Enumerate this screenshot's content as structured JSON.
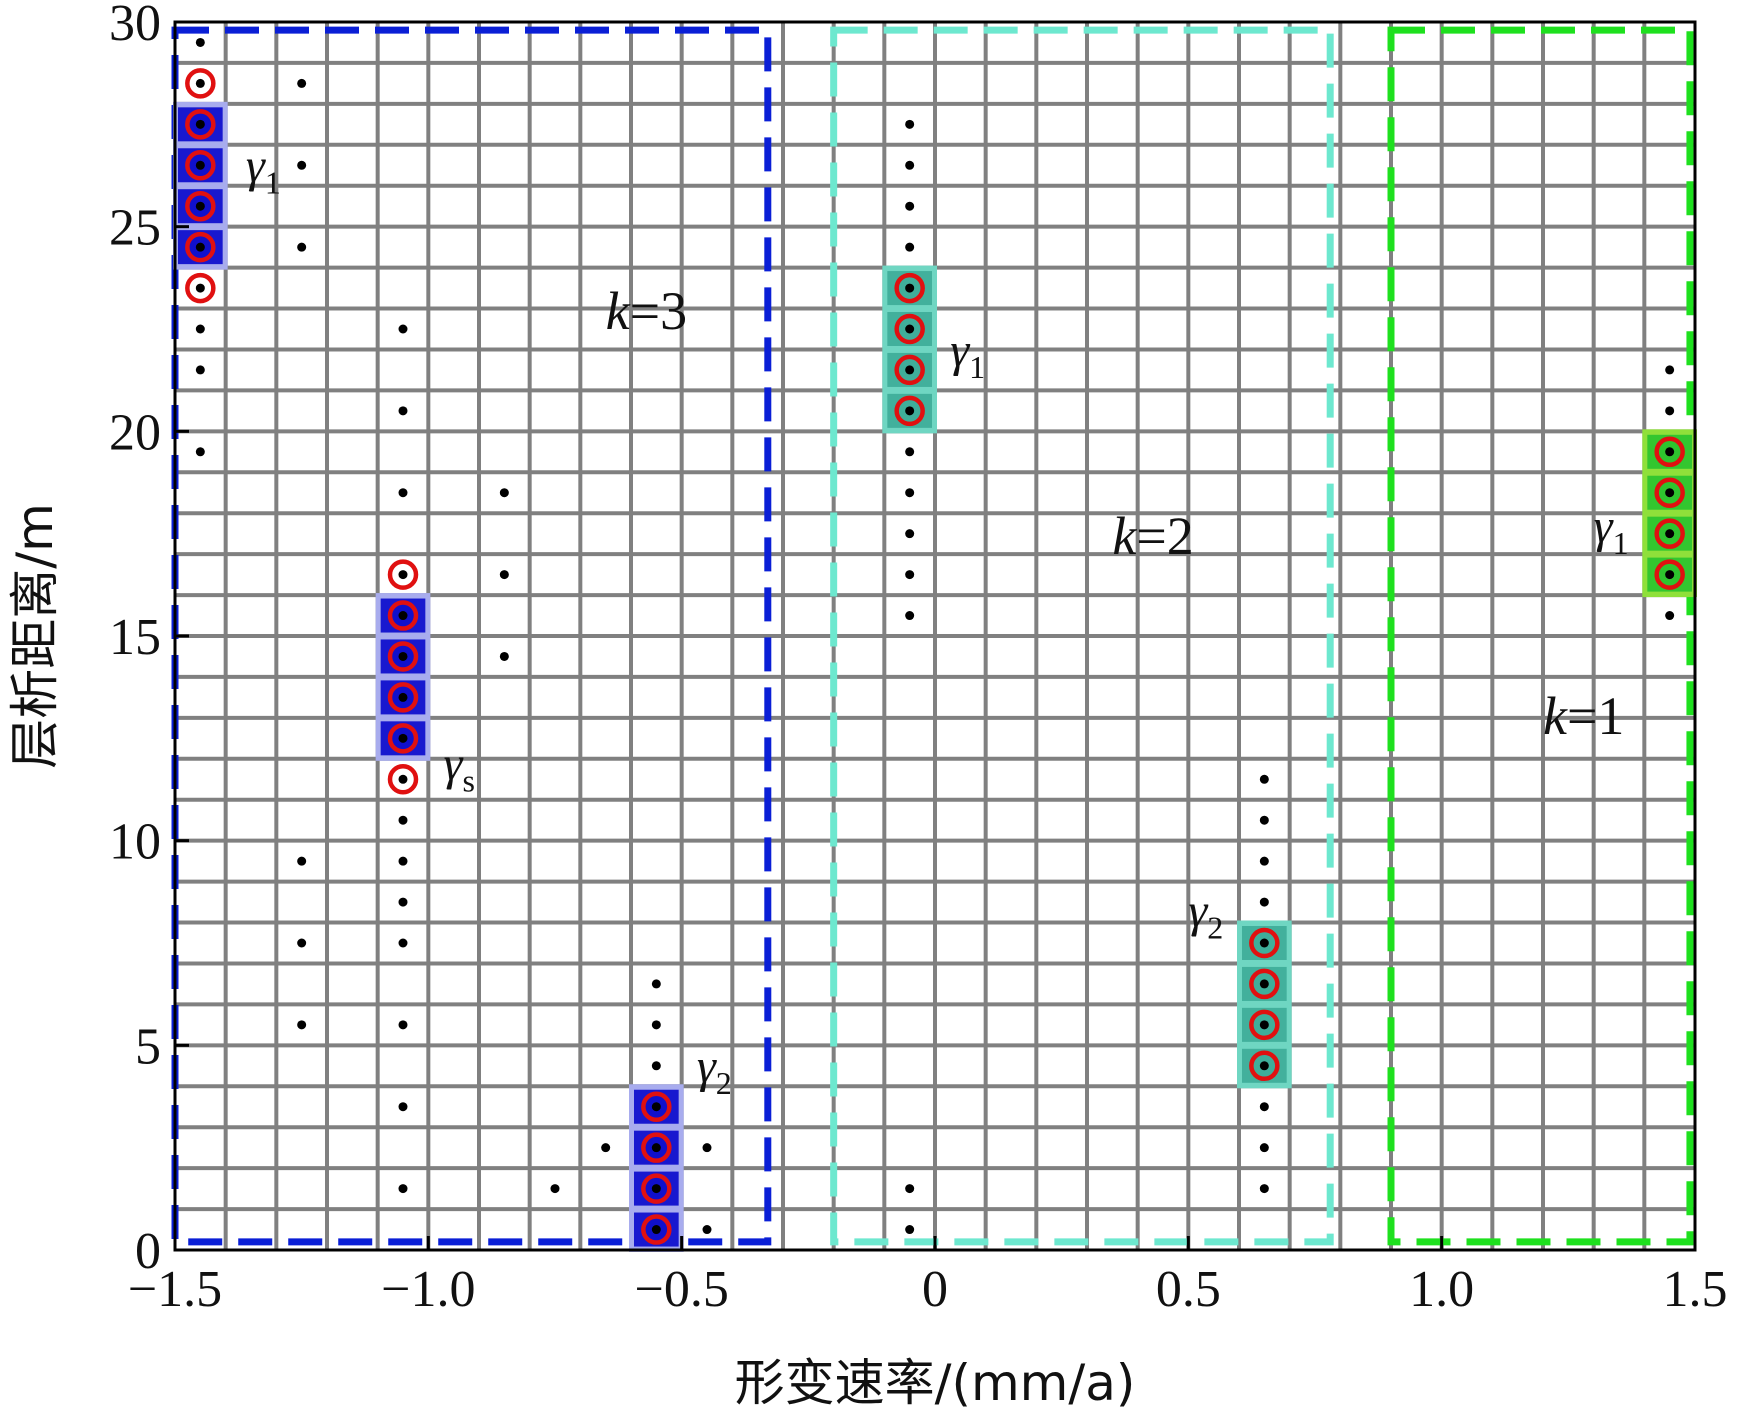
{
  "chart_data": {
    "type": "scatter",
    "title": "",
    "xlabel": "形变速率/(mm/a)",
    "ylabel": "层析距离/m",
    "xlim": [
      -1.5,
      1.5
    ],
    "ylim": [
      0,
      30
    ],
    "x_step": 0.1,
    "y_step": 1,
    "x_ticks": [
      -1.5,
      -1.0,
      -0.5,
      0,
      0.5,
      1.0,
      1.5
    ],
    "x_tick_labels": [
      "−1.5",
      "−1.0",
      "−0.5",
      "0",
      "0.5",
      "1.0",
      "1.5"
    ],
    "y_ticks": [
      0,
      5,
      10,
      15,
      20,
      25,
      30
    ],
    "y_tick_labels": [
      "0",
      "5",
      "10",
      "15",
      "20",
      "25",
      "30"
    ],
    "grid": true,
    "grid_color": "#808080",
    "regions": [
      {
        "name": "k=3",
        "k_var": "k",
        "k_value": "=3",
        "x_range": [
          -1.5,
          -0.33
        ],
        "y_range": [
          0.2,
          29.8
        ],
        "color": "#0a1fd6",
        "label_at": [
          -0.65,
          22.5
        ]
      },
      {
        "name": "k=2",
        "k_var": "k",
        "k_value": "=2",
        "x_range": [
          -0.2,
          0.78
        ],
        "y_range": [
          0.2,
          29.8
        ],
        "color": "#6de8cf",
        "label_at": [
          0.35,
          17
        ]
      },
      {
        "name": "k=1",
        "k_var": "k",
        "k_value": "=1",
        "x_range": [
          0.9,
          1.49
        ],
        "y_range": [
          0.2,
          29.8
        ],
        "color": "#1ee01e",
        "label_at": [
          1.2,
          12.6
        ]
      }
    ],
    "points": [
      {
        "x": -1.45,
        "y": [
          29.5,
          22.5,
          21.5,
          19.5
        ]
      },
      {
        "x": -1.25,
        "y": [
          28.5,
          26.5,
          24.5,
          9.5,
          7.5,
          5.5
        ]
      },
      {
        "x": -1.05,
        "y": [
          22.5,
          20.5,
          18.5,
          10.5,
          9.5,
          8.5,
          7.5,
          5.5,
          3.5,
          1.5
        ]
      },
      {
        "x": -0.85,
        "y": [
          18.5,
          16.5,
          14.5
        ]
      },
      {
        "x": -0.75,
        "y": [
          1.5
        ]
      },
      {
        "x": -0.65,
        "y": [
          2.5
        ]
      },
      {
        "x": -0.55,
        "y": [
          6.5,
          5.5,
          4.5
        ]
      },
      {
        "x": -0.45,
        "y": [
          2.5,
          0.5
        ]
      },
      {
        "x": -0.05,
        "y": [
          27.5,
          26.5,
          25.5,
          24.5,
          19.5,
          18.5,
          17.5,
          16.5,
          15.5,
          1.5,
          0.5
        ]
      },
      {
        "x": 0.65,
        "y": [
          11.5,
          10.5,
          9.5,
          8.5,
          3.5,
          2.5,
          1.5
        ]
      },
      {
        "x": 1.45,
        "y": [
          21.5,
          20.5,
          15.5
        ]
      }
    ],
    "clusters": [
      {
        "name": "γ1",
        "base": "γ",
        "sub": "1",
        "x": -1.45,
        "box_y": [
          24,
          28
        ],
        "ring_y": [
          28.5,
          27.5,
          26.5,
          25.5,
          24.5,
          23.5
        ],
        "fill_y": [
          27.5,
          26.5,
          25.5,
          24.5
        ],
        "fill": "#1010cc",
        "box": "#a8acee",
        "label_at": [
          -1.36,
          26.1
        ]
      },
      {
        "name": "γs",
        "base": "γ",
        "sub": "s",
        "x": -1.05,
        "box_y": [
          12,
          16
        ],
        "ring_y": [
          16.5,
          15.5,
          14.5,
          13.5,
          12.5,
          11.5
        ],
        "fill_y": [
          15.5,
          14.5,
          13.5,
          12.5
        ],
        "fill": "#1010cc",
        "box": "#a8acee",
        "label_at": [
          -0.97,
          11.5
        ]
      },
      {
        "name": "γ2",
        "base": "γ",
        "sub": "2",
        "x": -0.55,
        "box_y": [
          0,
          4
        ],
        "ring_y": [
          3.5,
          2.5,
          1.5,
          0.5
        ],
        "fill_y": [
          3.5,
          2.5,
          1.5,
          0.5
        ],
        "fill": "#1010cc",
        "box": "#a8acee",
        "label_at": [
          -0.47,
          4.1
        ]
      },
      {
        "name": "γ1",
        "base": "γ",
        "sub": "1",
        "x": -0.05,
        "box_y": [
          20,
          24
        ],
        "ring_y": [
          23.5,
          22.5,
          21.5,
          20.5
        ],
        "fill_y": [
          23.5,
          22.5,
          21.5,
          20.5
        ],
        "fill": "#3fae9a",
        "box": "#6fd6c2",
        "label_at": [
          0.03,
          21.6
        ]
      },
      {
        "name": "γ2",
        "base": "γ",
        "sub": "2",
        "x": 0.65,
        "box_y": [
          4,
          8
        ],
        "ring_y": [
          7.5,
          6.5,
          5.5,
          4.5
        ],
        "fill_y": [
          7.5,
          6.5,
          5.5,
          4.5
        ],
        "fill": "#3fae9a",
        "box": "#6fd6c2",
        "label_at": [
          0.5,
          7.9
        ]
      },
      {
        "name": "γ1",
        "base": "γ",
        "sub": "1",
        "x": 1.45,
        "box_y": [
          16,
          20
        ],
        "ring_y": [
          19.5,
          18.5,
          17.5,
          16.5
        ],
        "fill_y": [
          19.5,
          18.5,
          17.5,
          16.5
        ],
        "fill": "#2ec42e",
        "box": "#8fe03a",
        "label_at": [
          1.3,
          17.3
        ]
      }
    ]
  }
}
